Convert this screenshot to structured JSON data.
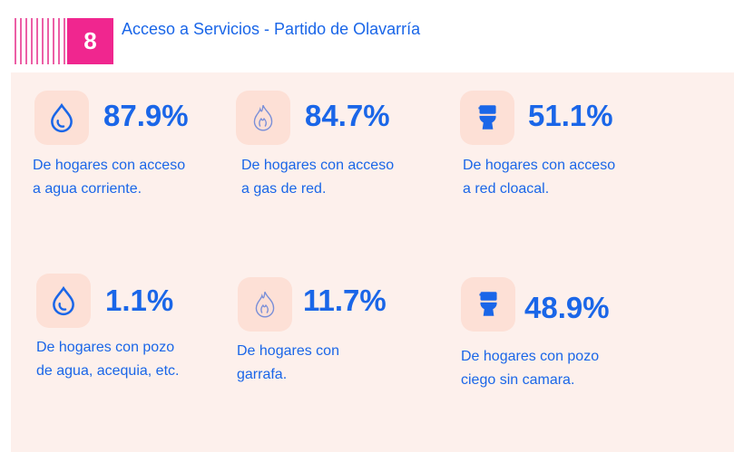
{
  "header": {
    "number": "8",
    "title": "Acceso a Servicios - Partido de Olavarría"
  },
  "colors": {
    "accent": "#f0268f",
    "blue": "#1a66e8",
    "panel": "#fdf0ec"
  },
  "stats": [
    {
      "icon": "water-drop-icon",
      "value": "87.9%",
      "line1": "De hogares con acceso",
      "line2": "a agua corriente."
    },
    {
      "icon": "flame-icon",
      "value": "84.7%",
      "line1": "De hogares con acceso",
      "line2": "a gas de red."
    },
    {
      "icon": "toilet-icon",
      "value": "51.1%",
      "line1": "De hogares con acceso",
      "line2": "a red cloacal."
    },
    {
      "icon": "water-drop-icon",
      "value": "1.1%",
      "line1": "De hogares con pozo",
      "line2": "de agua, acequia, etc."
    },
    {
      "icon": "flame-icon",
      "value": "11.7%",
      "line1": "De hogares con",
      "line2": "garrafa."
    },
    {
      "icon": "toilet-icon",
      "value": "48.9%",
      "line1": "De hogares con pozo",
      "line2": "ciego sin camara."
    }
  ]
}
